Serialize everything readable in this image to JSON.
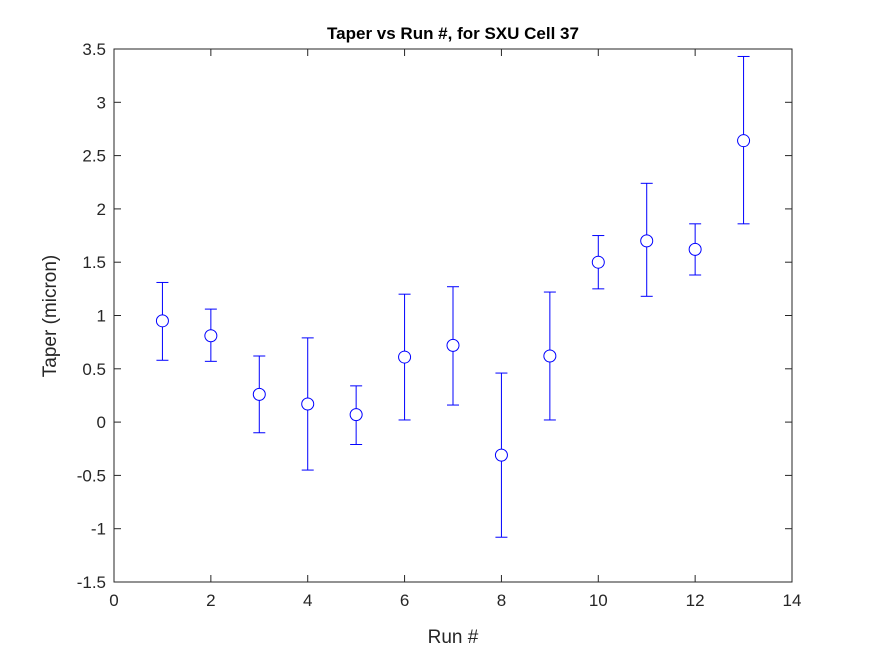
{
  "chart_data": {
    "type": "scatter",
    "title": "Taper vs Run #, for SXU Cell 37",
    "xlabel": "Run #",
    "ylabel": "Taper (micron)",
    "xlim": [
      0,
      14
    ],
    "ylim": [
      -1.5,
      3.5
    ],
    "xticks": [
      "0",
      "2",
      "4",
      "6",
      "8",
      "10",
      "12",
      "14"
    ],
    "yticks": [
      "-1.5",
      "-1",
      "-0.5",
      "0",
      "0.5",
      "1",
      "1.5",
      "2",
      "2.5",
      "3",
      "3.5"
    ],
    "grid": false,
    "marker": "circle",
    "color": "#0000ff",
    "series": [
      {
        "x": [
          1,
          2,
          3,
          4,
          5,
          6,
          7,
          8,
          9,
          10,
          11,
          12,
          13
        ],
        "y": [
          0.95,
          0.81,
          0.26,
          0.17,
          0.07,
          0.61,
          0.72,
          -0.31,
          0.62,
          1.5,
          1.7,
          1.62,
          2.64
        ],
        "upper": [
          1.31,
          1.06,
          0.62,
          0.79,
          0.34,
          1.2,
          1.27,
          0.46,
          1.22,
          1.75,
          2.24,
          1.86,
          3.43
        ],
        "lower": [
          0.58,
          0.57,
          -0.1,
          -0.45,
          -0.21,
          0.02,
          0.16,
          -1.08,
          0.02,
          1.25,
          1.18,
          1.38,
          1.86
        ]
      }
    ]
  }
}
